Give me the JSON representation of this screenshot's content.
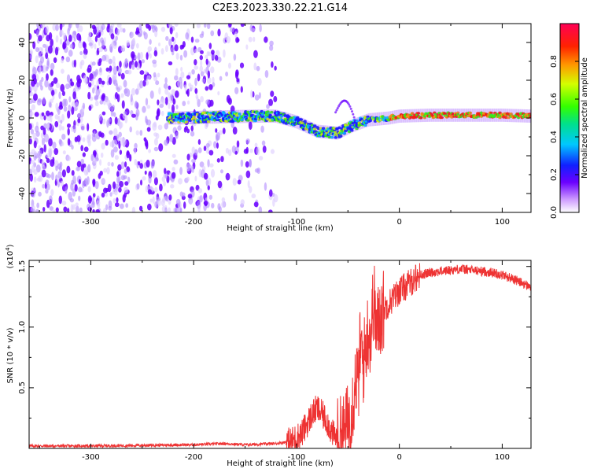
{
  "title": "C2E3.2023.330.22.21.G14",
  "chart_data": [
    {
      "type": "heatmap",
      "xlabel": "Height of straight line (km)",
      "ylabel": "Frequency (Hz)",
      "xlim": [
        -360,
        128
      ],
      "ylim": [
        -50,
        50
      ],
      "xticks": [
        -300,
        -200,
        -100,
        0,
        100
      ],
      "yticks": [
        -40,
        -20,
        0,
        20,
        40
      ],
      "xtick_labels": [
        "-300",
        "-200",
        "-100",
        "0",
        "100"
      ],
      "ytick_labels": [
        "-40",
        "-20",
        "0",
        "20",
        "40"
      ],
      "colorbar": {
        "label": "Normalized spectral amplitude",
        "range": [
          0,
          1
        ],
        "ticks": [
          0.0,
          0.2,
          0.4,
          0.6,
          0.8
        ],
        "tick_labels": [
          "0.0",
          "0.2",
          "0.4",
          "0.6",
          "0.8"
        ],
        "colormap": "rainbow-white"
      },
      "ridge": {
        "x": [
          -220,
          -180,
          -140,
          -120,
          -100,
          -80,
          -60,
          -45,
          -30,
          -10,
          0,
          30,
          60,
          100,
          128
        ],
        "y": [
          0,
          0.5,
          1,
          1,
          -2,
          -7,
          -8,
          -4,
          -1,
          0,
          1,
          1.5,
          1.5,
          1.5,
          1
        ]
      }
    },
    {
      "type": "line",
      "xlabel": "Height of straight line (km)",
      "ylabel": "SNR (10 * v/v)",
      "ylabel_multiplier": "(x10^4)",
      "xlim": [
        -360,
        128
      ],
      "ylim": [
        0,
        1.55
      ],
      "xticks": [
        -300,
        -200,
        -100,
        0,
        100
      ],
      "yticks": [
        0.5,
        1.0,
        1.5
      ],
      "xtick_labels": [
        "-300",
        "-200",
        "-100",
        "0",
        "100"
      ],
      "ytick_labels": [
        "0.5",
        "1.0",
        "1.5"
      ],
      "line_color": "#ee3333",
      "series": [
        {
          "x": [
            -360,
            -300,
            -250,
            -200,
            -170,
            -150,
            -120,
            -105,
            -95,
            -90,
            -85,
            -80,
            -75,
            -70,
            -65,
            -60,
            -55,
            -50,
            -45,
            -42,
            -40,
            -38,
            -35,
            -30,
            -28,
            -25,
            -22,
            -20,
            -18,
            -15,
            -10,
            -5,
            0,
            5,
            10,
            15,
            20,
            30,
            40,
            50,
            60,
            70,
            80,
            90,
            100,
            110,
            120,
            128
          ],
          "y": [
            0.02,
            0.02,
            0.025,
            0.03,
            0.04,
            0.03,
            0.04,
            0.06,
            0.12,
            0.2,
            0.28,
            0.33,
            0.28,
            0.22,
            0.12,
            0.08,
            0.1,
            0.2,
            0.4,
            0.6,
            0.5,
            0.85,
            0.7,
            1.0,
            0.9,
            1.25,
            0.95,
            1.05,
            1.1,
            1.15,
            1.2,
            1.25,
            1.3,
            1.33,
            1.36,
            1.4,
            1.43,
            1.45,
            1.46,
            1.47,
            1.48,
            1.47,
            1.46,
            1.45,
            1.43,
            1.4,
            1.36,
            1.33
          ]
        }
      ]
    }
  ]
}
